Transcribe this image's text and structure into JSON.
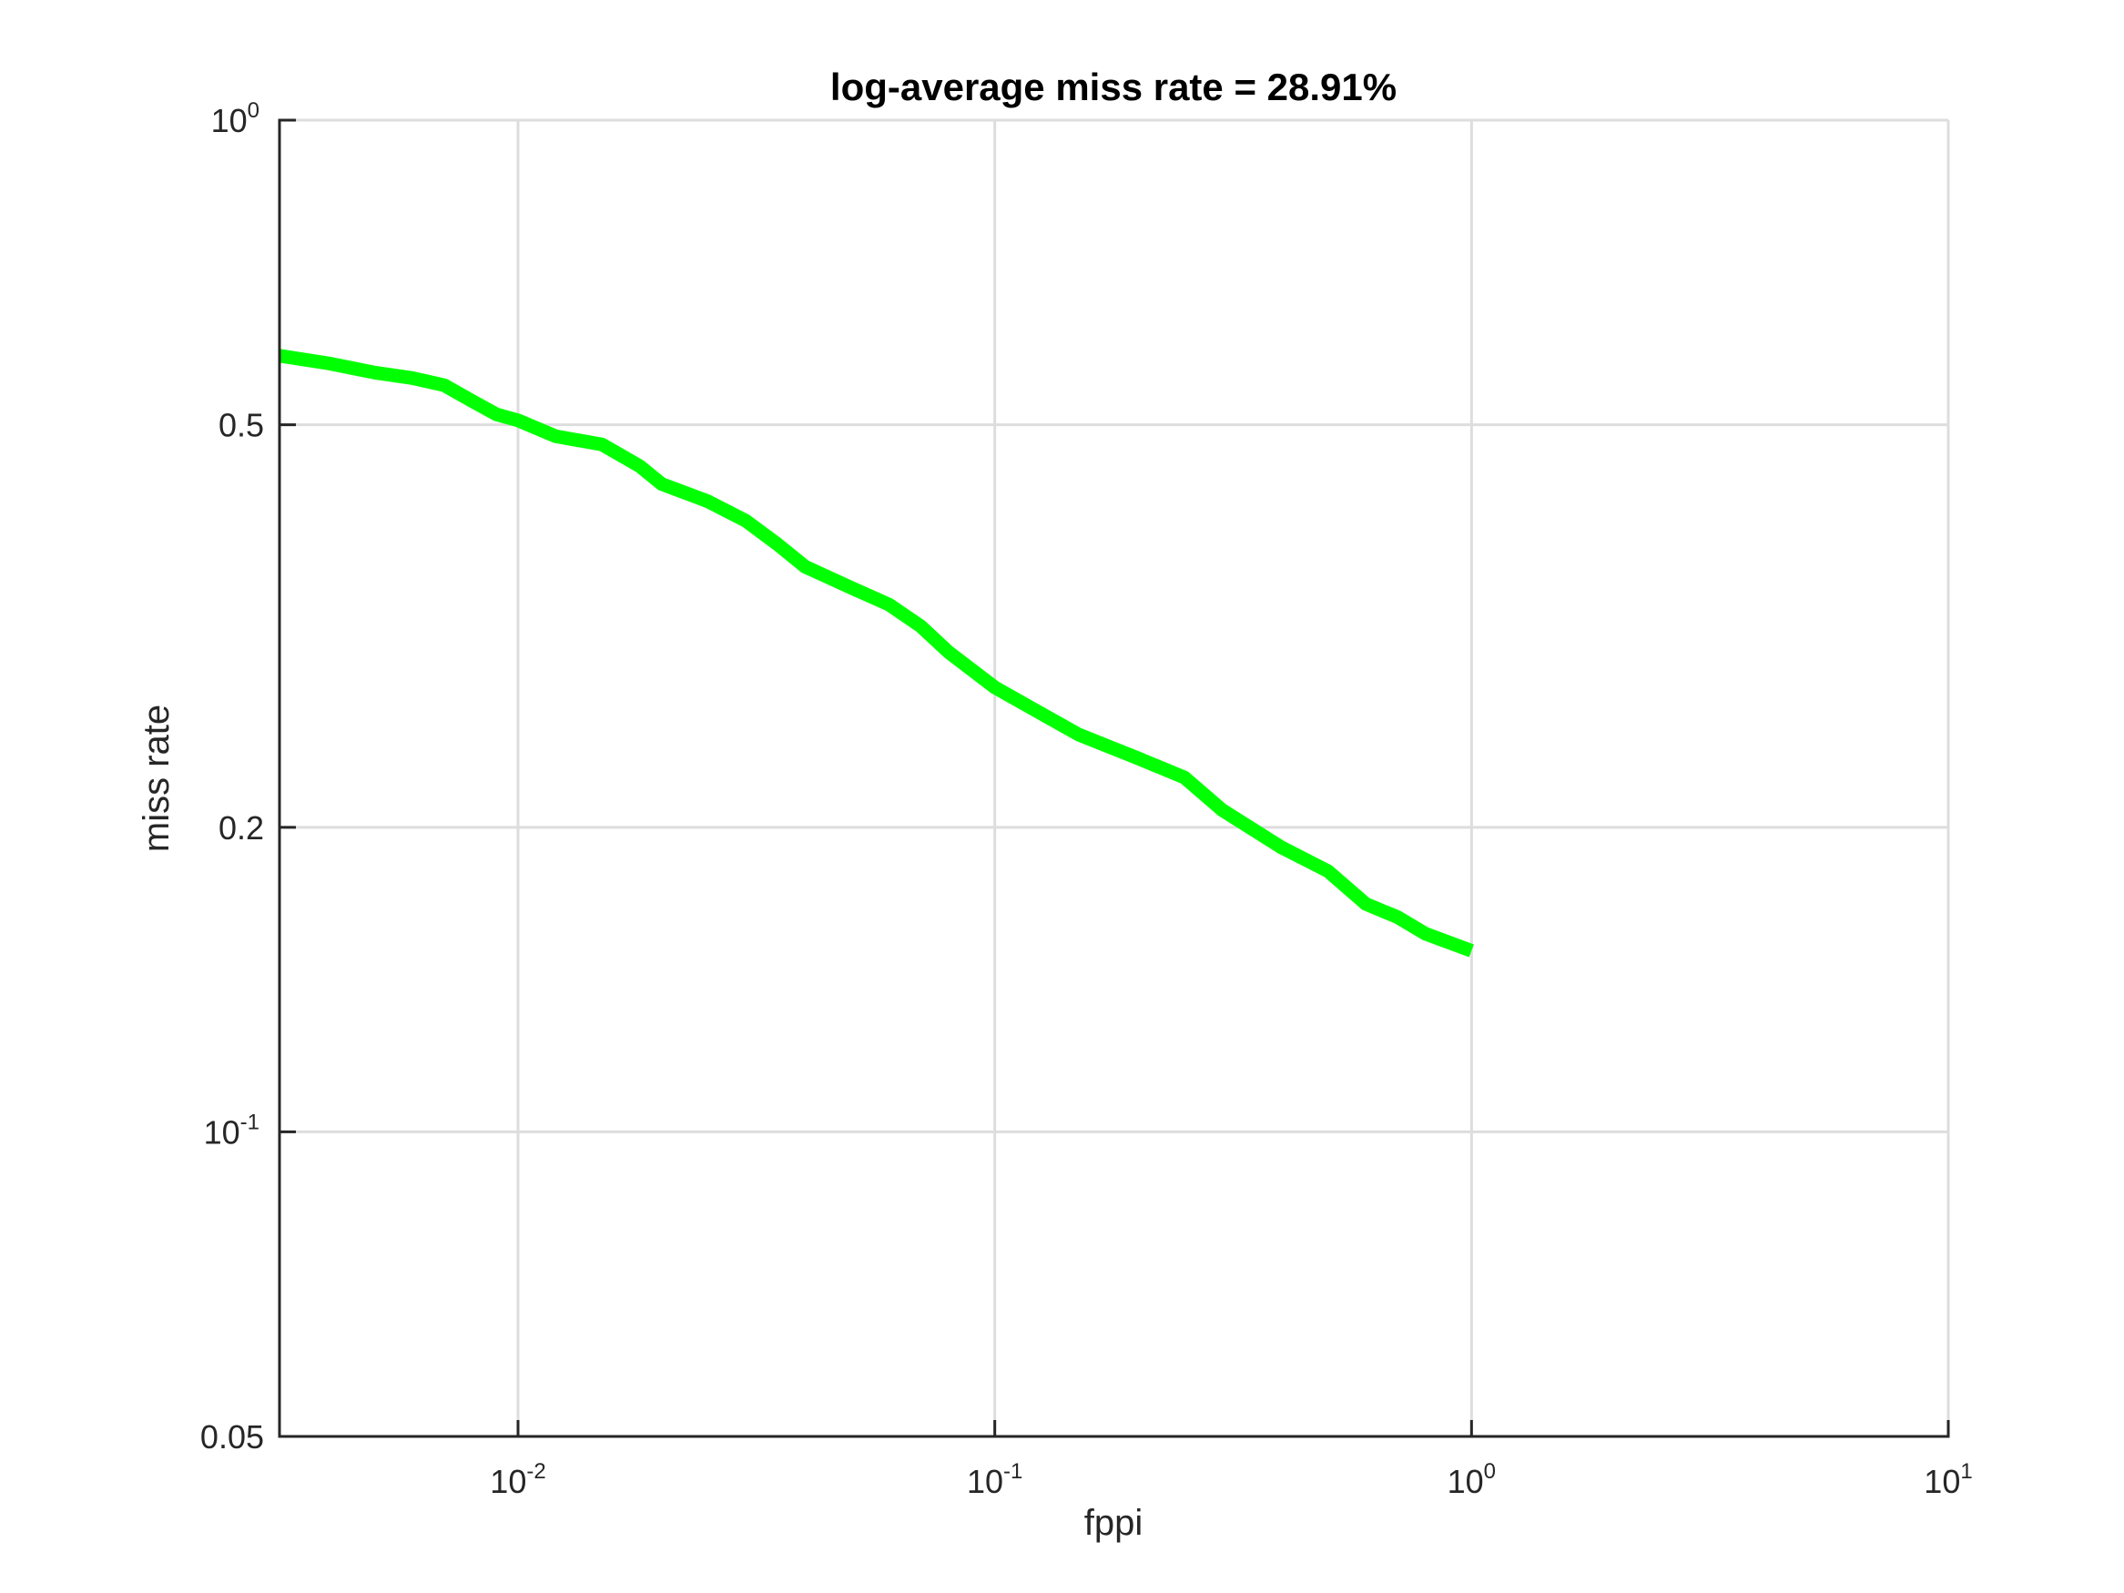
{
  "chart_data": {
    "type": "line",
    "title": "log-average miss rate = 28.91%",
    "xlabel": "fppi",
    "ylabel": "miss rate",
    "xscale": "log",
    "yscale": "log",
    "xlim": [
      0.00316,
      10
    ],
    "ylim": [
      0.05,
      1
    ],
    "grid": true,
    "legend": "none",
    "x_ticks": [
      {
        "value": 0.01,
        "base": "10",
        "exp": "-2"
      },
      {
        "value": 0.1,
        "base": "10",
        "exp": "-1"
      },
      {
        "value": 1,
        "base": "10",
        "exp": "0"
      },
      {
        "value": 10,
        "base": "10",
        "exp": "1"
      }
    ],
    "y_ticks": [
      {
        "value": 0.05,
        "base": "0.05",
        "exp": ""
      },
      {
        "value": 0.1,
        "base": "10",
        "exp": "-1"
      },
      {
        "value": 0.2,
        "base": "0.2",
        "exp": ""
      },
      {
        "value": 0.5,
        "base": "0.5",
        "exp": ""
      },
      {
        "value": 1,
        "base": "10",
        "exp": "0"
      }
    ],
    "series": [
      {
        "color": "#00ff00",
        "x": [
          0.00316,
          0.004,
          0.005,
          0.006,
          0.007,
          0.008,
          0.009,
          0.01,
          0.012,
          0.015,
          0.018,
          0.02,
          0.025,
          0.03,
          0.035,
          0.04,
          0.05,
          0.06,
          0.07,
          0.08,
          0.1,
          0.12,
          0.15,
          0.2,
          0.25,
          0.3,
          0.4,
          0.5,
          0.6,
          0.7,
          0.8,
          1.0
        ],
        "y": [
          0.585,
          0.575,
          0.563,
          0.556,
          0.547,
          0.528,
          0.512,
          0.505,
          0.487,
          0.478,
          0.455,
          0.437,
          0.42,
          0.402,
          0.381,
          0.362,
          0.345,
          0.332,
          0.316,
          0.298,
          0.275,
          0.262,
          0.247,
          0.234,
          0.224,
          0.208,
          0.191,
          0.181,
          0.168,
          0.163,
          0.157,
          0.151
        ]
      }
    ]
  }
}
